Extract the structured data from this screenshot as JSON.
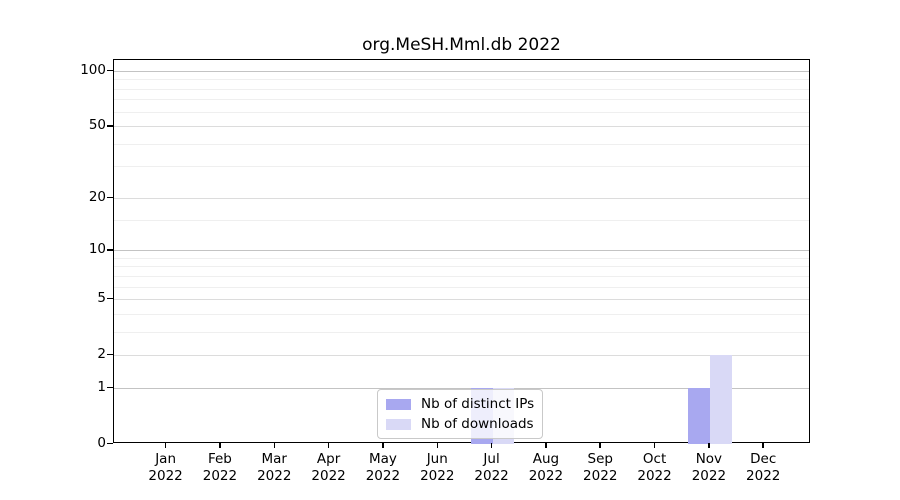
{
  "title": "org.MeSH.Mml.db 2022",
  "chart_data": {
    "type": "bar",
    "title": "org.MeSH.Mml.db 2022",
    "scale": "log1p",
    "xlabel": "",
    "ylabel": "",
    "year": "2022",
    "categories": [
      "Jan",
      "Feb",
      "Mar",
      "Apr",
      "May",
      "Jun",
      "Jul",
      "Aug",
      "Sep",
      "Oct",
      "Nov",
      "Dec"
    ],
    "series": [
      {
        "name": "Nb of distinct IPs",
        "color": "#a8a8f0",
        "values": [
          0,
          0,
          0,
          0,
          0,
          0,
          1,
          0,
          0,
          0,
          1,
          0
        ]
      },
      {
        "name": "Nb of downloads",
        "color": "#d9d9f6",
        "values": [
          0,
          0,
          0,
          0,
          0,
          0,
          1,
          0,
          0,
          0,
          2,
          0
        ]
      }
    ],
    "y_ticks": [
      0,
      1,
      2,
      5,
      10,
      20,
      50,
      100
    ],
    "y_decade_ticks": [
      1,
      10,
      100
    ],
    "minor_gridlines": [
      3,
      4,
      6,
      7,
      8,
      9,
      15,
      30,
      40,
      60,
      70,
      80,
      90
    ],
    "ylim": [
      0,
      115
    ],
    "grid": true,
    "legend_position": "bottom-center"
  }
}
